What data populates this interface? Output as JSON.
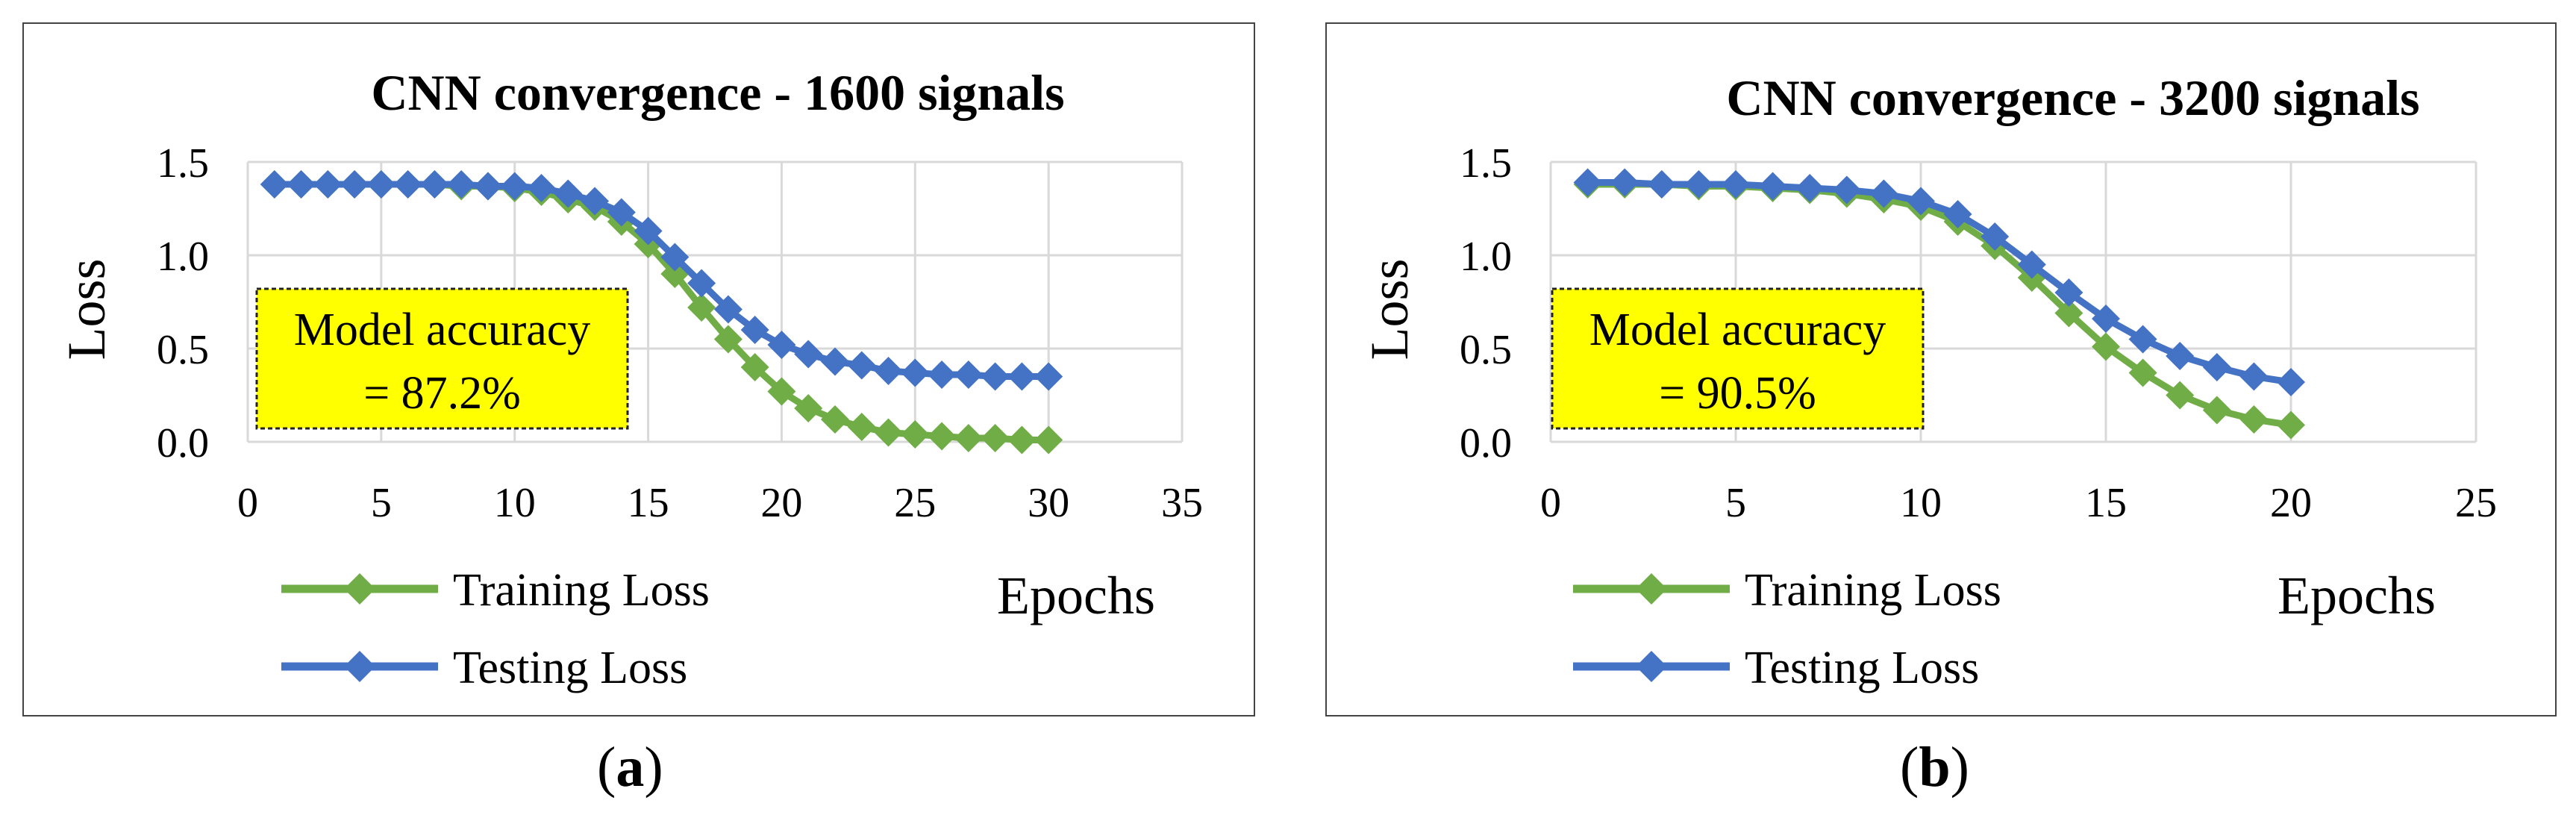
{
  "chart_data": [
    {
      "type": "line",
      "title": "CNN convergence - 1600 signals",
      "xlabel": "Epochs",
      "ylabel": "Loss",
      "xlim": [
        0,
        35
      ],
      "ylim": [
        0,
        1.5
      ],
      "xticks": [
        "0",
        "5",
        "10",
        "15",
        "20",
        "25",
        "30",
        "35"
      ],
      "yticks": [
        "0.0",
        "0.5",
        "1.0",
        "1.5"
      ],
      "grid": true,
      "legend_position": "bottom-left",
      "annotation": {
        "line1": "Model accuracy",
        "line2": "= 87.2%"
      },
      "x": [
        1,
        2,
        3,
        4,
        5,
        6,
        7,
        8,
        9,
        10,
        11,
        12,
        13,
        14,
        15,
        16,
        17,
        18,
        19,
        20,
        21,
        22,
        23,
        24,
        25,
        26,
        27,
        28,
        29,
        30
      ],
      "series": [
        {
          "name": "Training Loss",
          "color": "#70ad47",
          "values": [
            1.38,
            1.38,
            1.38,
            1.38,
            1.38,
            1.38,
            1.38,
            1.37,
            1.37,
            1.36,
            1.34,
            1.3,
            1.26,
            1.18,
            1.06,
            0.9,
            0.72,
            0.55,
            0.4,
            0.27,
            0.18,
            0.12,
            0.08,
            0.05,
            0.04,
            0.03,
            0.02,
            0.02,
            0.01,
            0.01
          ]
        },
        {
          "name": "Testing Loss",
          "color": "#4472c4",
          "values": [
            1.38,
            1.38,
            1.38,
            1.38,
            1.38,
            1.38,
            1.38,
            1.38,
            1.37,
            1.37,
            1.36,
            1.33,
            1.29,
            1.23,
            1.13,
            0.99,
            0.85,
            0.71,
            0.6,
            0.52,
            0.47,
            0.43,
            0.41,
            0.38,
            0.37,
            0.36,
            0.36,
            0.35,
            0.35,
            0.35
          ]
        }
      ]
    },
    {
      "type": "line",
      "title": "CNN convergence - 3200 signals",
      "xlabel": "Epochs",
      "ylabel": "Loss",
      "xlim": [
        0,
        25
      ],
      "ylim": [
        0,
        1.5
      ],
      "xticks": [
        "0",
        "5",
        "10",
        "15",
        "20",
        "25"
      ],
      "yticks": [
        "0.0",
        "0.5",
        "1.0",
        "1.5"
      ],
      "grid": true,
      "legend_position": "bottom-left",
      "annotation": {
        "line1": "Model accuracy",
        "line2": "= 90.5%"
      },
      "x": [
        1,
        2,
        3,
        4,
        5,
        6,
        7,
        8,
        9,
        10,
        11,
        12,
        13,
        14,
        15,
        16,
        17,
        18,
        19,
        20
      ],
      "series": [
        {
          "name": "Training Loss",
          "color": "#70ad47",
          "values": [
            1.38,
            1.38,
            1.38,
            1.37,
            1.37,
            1.36,
            1.35,
            1.33,
            1.3,
            1.26,
            1.18,
            1.05,
            0.88,
            0.69,
            0.51,
            0.37,
            0.25,
            0.17,
            0.12,
            0.09
          ]
        },
        {
          "name": "Testing Loss",
          "color": "#4472c4",
          "values": [
            1.39,
            1.39,
            1.38,
            1.38,
            1.38,
            1.37,
            1.36,
            1.35,
            1.33,
            1.29,
            1.22,
            1.1,
            0.95,
            0.8,
            0.66,
            0.55,
            0.46,
            0.4,
            0.35,
            0.32
          ]
        }
      ]
    }
  ],
  "captions": {
    "a_letter": "a",
    "b_letter": "b"
  }
}
